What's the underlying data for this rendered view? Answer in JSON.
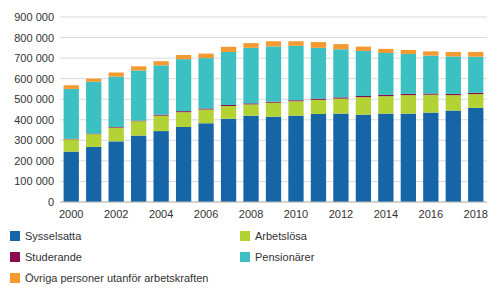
{
  "chart_data": {
    "type": "bar",
    "stacked": true,
    "grid": true,
    "legend": "bottom",
    "categories": [
      "2000",
      null,
      "2002",
      null,
      "2004",
      null,
      "2006",
      null,
      "2008",
      null,
      "2010",
      null,
      "2012",
      null,
      "2014",
      null,
      "2016",
      null,
      "2018"
    ],
    "ylim": [
      0,
      900000
    ],
    "yticks": [
      {
        "value": 0,
        "label": "0"
      },
      {
        "value": 100000,
        "label": "100 000"
      },
      {
        "value": 200000,
        "label": "200 000"
      },
      {
        "value": 300000,
        "label": "300 000"
      },
      {
        "value": 400000,
        "label": "400 000"
      },
      {
        "value": 500000,
        "label": "500 000"
      },
      {
        "value": 600000,
        "label": "600 000"
      },
      {
        "value": 700000,
        "label": "700 000"
      },
      {
        "value": 800000,
        "label": "800 000"
      },
      {
        "value": 900000,
        "label": "900 000"
      }
    ],
    "series": [
      {
        "name": "Sysselsatta",
        "color": "#1565a7",
        "values": [
          245000,
          268000,
          295000,
          323000,
          345000,
          365000,
          383000,
          405000,
          420000,
          415000,
          420000,
          428000,
          430000,
          425000,
          430000,
          430000,
          435000,
          445000,
          458000
        ]
      },
      {
        "name": "Arbetslösa",
        "color": "#b3d335",
        "values": [
          60000,
          62000,
          67000,
          70000,
          75000,
          72000,
          67000,
          62000,
          55000,
          68000,
          70000,
          69000,
          73000,
          85000,
          85000,
          90000,
          87000,
          75000,
          67000
        ]
      },
      {
        "name": "Studerande",
        "color": "#8b0c4d",
        "values": [
          3000,
          3000,
          3000,
          3000,
          5000,
          5000,
          5000,
          5000,
          5000,
          5000,
          5000,
          6000,
          6000,
          6000,
          6000,
          6000,
          6000,
          6000,
          6000
        ]
      },
      {
        "name": "Pensionärer",
        "color": "#3cc0c2",
        "values": [
          242000,
          252000,
          245000,
          244000,
          240000,
          253000,
          245000,
          258000,
          270000,
          269000,
          265000,
          247000,
          234000,
          219000,
          204000,
          194000,
          184000,
          182000,
          176000
        ]
      },
      {
        "name": "Övriga personer utanför arbetskraften",
        "color": "#f49a30",
        "values": [
          18000,
          15000,
          20000,
          20000,
          20000,
          20000,
          22000,
          25000,
          23000,
          25000,
          22000,
          28000,
          25000,
          21000,
          20000,
          20000,
          21000,
          22000,
          23000
        ]
      }
    ]
  }
}
